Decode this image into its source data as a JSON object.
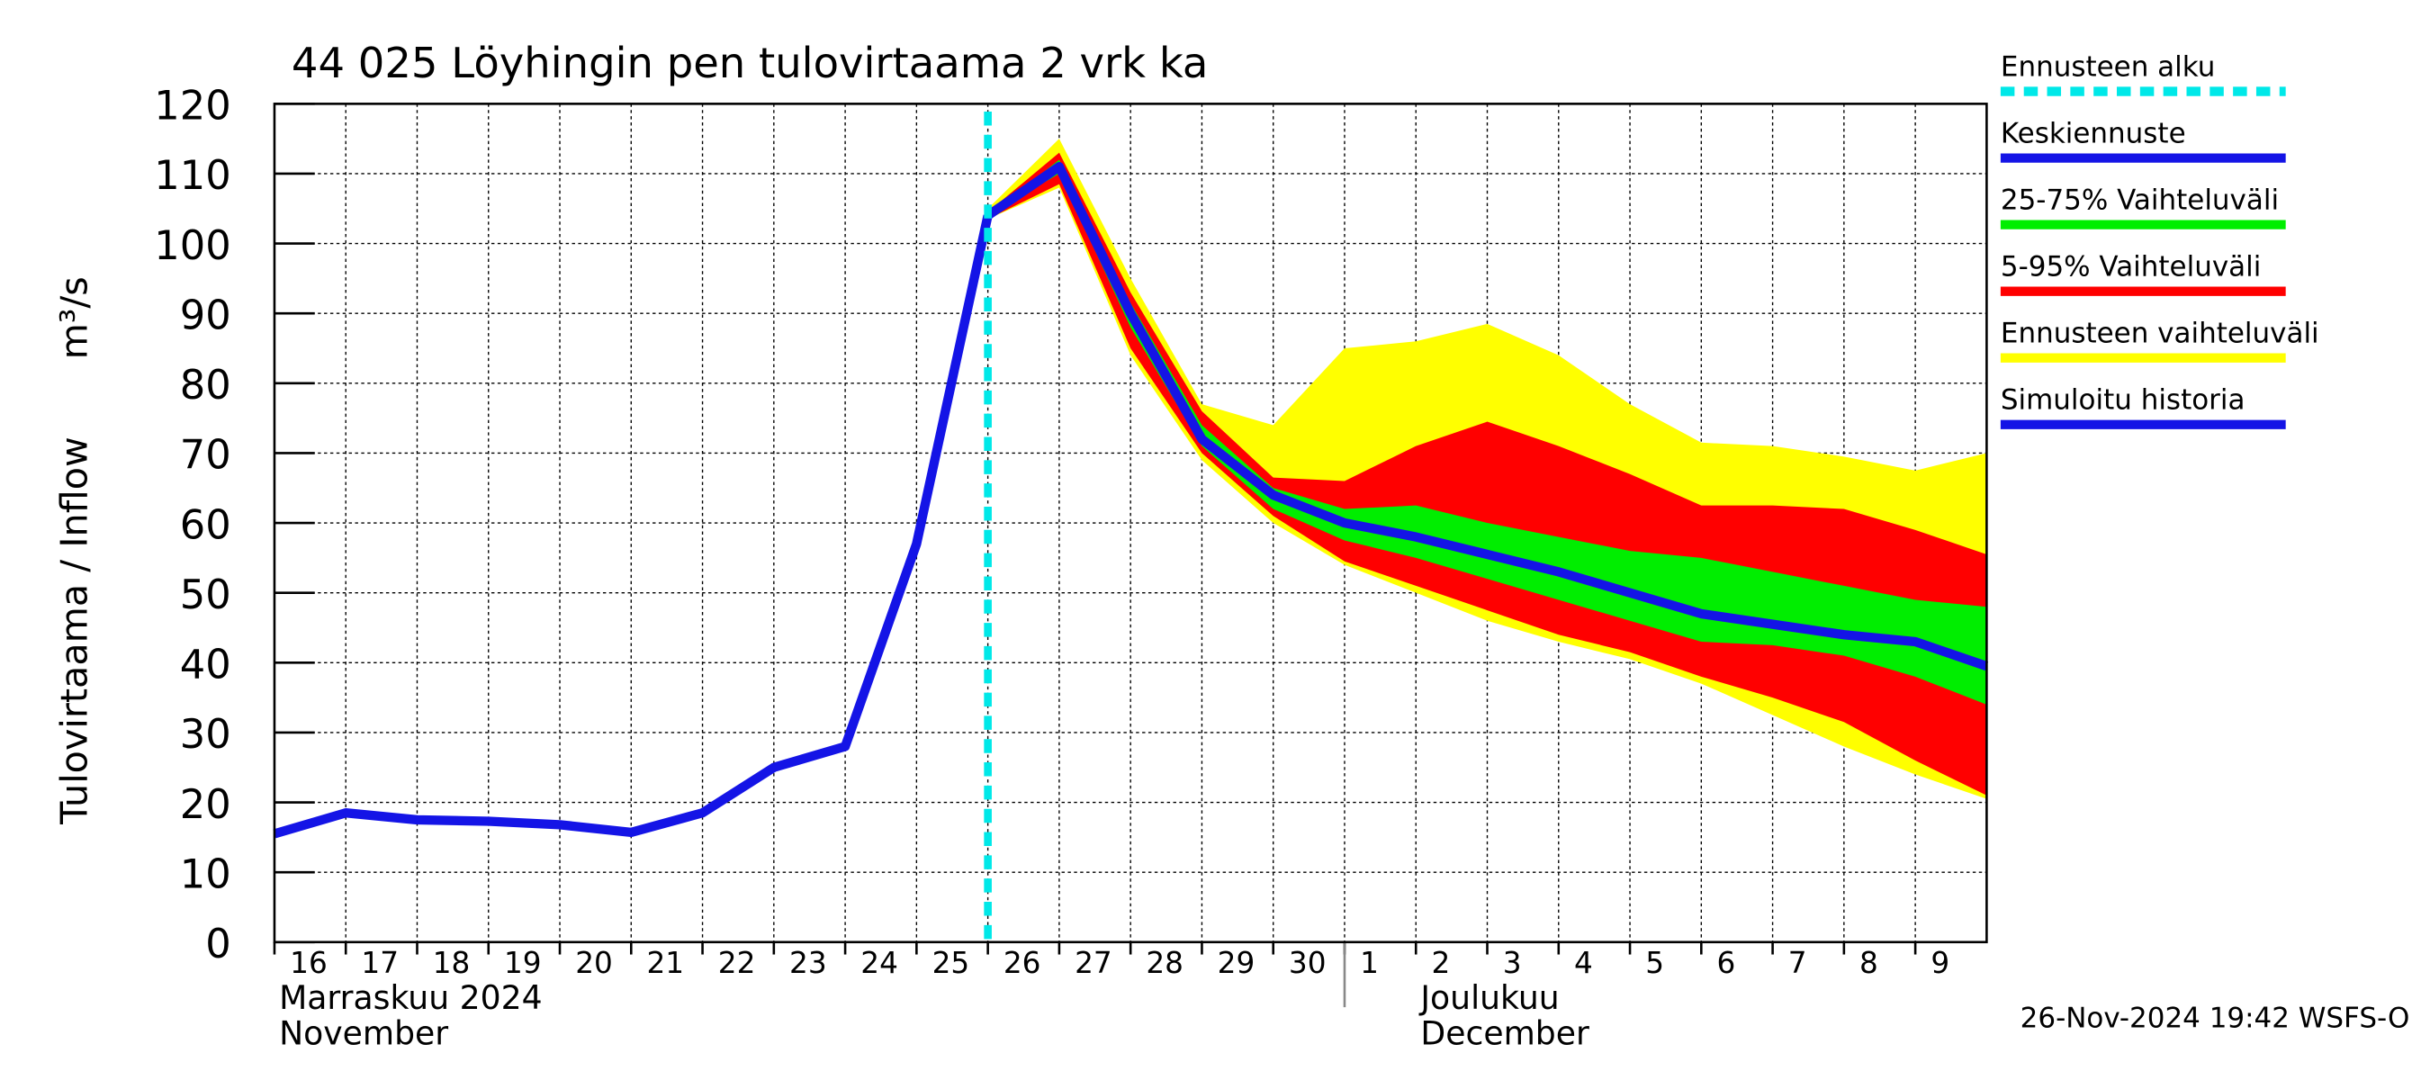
{
  "chart_data": {
    "type": "line",
    "title": "44 025 Löyhingin pen tulovirtaama 2 vrk ka",
    "y_label": "Tulovirtaama / Inflow",
    "y_unit": "m³/s",
    "month_labels": [
      {
        "text": "Marraskuu 2024",
        "x": 0
      },
      {
        "text": "November",
        "x": 0
      },
      {
        "text": "Joulukuu",
        "x": 16
      },
      {
        "text": "December",
        "x": 16
      }
    ],
    "month_divider": 15,
    "timestamp": "26-Nov-2024 19:42 WSFS-O",
    "xlim": [
      0,
      24
    ],
    "xticks": [
      {
        "value": 0,
        "label": "16"
      },
      {
        "value": 1,
        "label": "17"
      },
      {
        "value": 2,
        "label": "18"
      },
      {
        "value": 3,
        "label": "19"
      },
      {
        "value": 4,
        "label": "20"
      },
      {
        "value": 5,
        "label": "21"
      },
      {
        "value": 6,
        "label": "22"
      },
      {
        "value": 7,
        "label": "23"
      },
      {
        "value": 8,
        "label": "24"
      },
      {
        "value": 9,
        "label": "25"
      },
      {
        "value": 10,
        "label": "26"
      },
      {
        "value": 11,
        "label": "27"
      },
      {
        "value": 12,
        "label": "28"
      },
      {
        "value": 13,
        "label": "29"
      },
      {
        "value": 14,
        "label": "30"
      },
      {
        "value": 15,
        "label": "1"
      },
      {
        "value": 16,
        "label": "2"
      },
      {
        "value": 17,
        "label": "3"
      },
      {
        "value": 18,
        "label": "4"
      },
      {
        "value": 19,
        "label": "5"
      },
      {
        "value": 20,
        "label": "6"
      },
      {
        "value": 21,
        "label": "7"
      },
      {
        "value": 22,
        "label": "8"
      },
      {
        "value": 23,
        "label": "9"
      }
    ],
    "ylim": [
      0,
      120
    ],
    "yticks": [
      0,
      10,
      20,
      30,
      40,
      50,
      60,
      70,
      80,
      90,
      100,
      110,
      120
    ],
    "grid": true,
    "series": [
      {
        "name": "Ennusteen alku",
        "color": "#00e8e8",
        "style": "vline",
        "x": 10
      },
      {
        "name": "Keskiennuste",
        "color": "#1414e6",
        "style": "line",
        "x": [
          10,
          11,
          12,
          13,
          14,
          15,
          16,
          17,
          18,
          19,
          20,
          21,
          22,
          23,
          24
        ],
        "values": [
          104,
          111,
          90,
          72,
          64,
          60,
          58,
          55.5,
          53,
          50,
          47,
          45.5,
          44,
          43,
          39.5
        ]
      },
      {
        "name": "25-75% Vaihteluväli",
        "color": "#00ee00",
        "style": "band",
        "x": [
          10,
          11,
          12,
          13,
          14,
          15,
          16,
          17,
          18,
          19,
          20,
          21,
          22,
          23,
          24
        ],
        "upper": [
          104,
          112,
          91.5,
          74,
          65,
          62,
          62.5,
          60,
          58,
          56,
          55,
          53,
          51,
          49,
          48
        ],
        "lower": [
          104,
          110,
          88,
          71,
          62,
          57.5,
          55,
          52,
          49,
          46,
          43,
          42.5,
          41,
          38,
          34
        ]
      },
      {
        "name": "5-95% Vaihteluväli",
        "color": "#ff0000",
        "style": "band",
        "x": [
          10,
          11,
          12,
          13,
          14,
          15,
          16,
          17,
          18,
          19,
          20,
          21,
          22,
          23,
          24
        ],
        "upper": [
          104.5,
          113,
          93,
          76,
          66.5,
          66,
          71,
          74.5,
          71,
          67,
          62.5,
          62.5,
          62,
          59,
          55.5
        ],
        "lower": [
          103.5,
          108.5,
          85,
          70,
          61,
          54.5,
          51,
          47.5,
          44,
          41.5,
          38,
          35,
          31.5,
          26,
          21
        ]
      },
      {
        "name": "Ennusteen vaihteluväli",
        "color": "#ffff00",
        "style": "band",
        "x": [
          10,
          11,
          12,
          13,
          14,
          15,
          16,
          17,
          18,
          19,
          20,
          21,
          22,
          23,
          24
        ],
        "upper": [
          105,
          115,
          95,
          77,
          74,
          85,
          86,
          88.5,
          84,
          77,
          71.5,
          71,
          69.5,
          67.5,
          70
        ],
        "lower": [
          103.5,
          108,
          84,
          69,
          60,
          54,
          50,
          46,
          43,
          40.5,
          37,
          32.5,
          28,
          24,
          20.5
        ]
      },
      {
        "name": "Simuloitu historia",
        "color": "#1414e6",
        "style": "line",
        "x": [
          0,
          1,
          2,
          3,
          4,
          5,
          6,
          7,
          8,
          9,
          10
        ],
        "values": [
          15.5,
          18.5,
          17.5,
          17.3,
          16.8,
          15.7,
          18.5,
          25,
          28,
          57,
          104
        ]
      }
    ]
  }
}
